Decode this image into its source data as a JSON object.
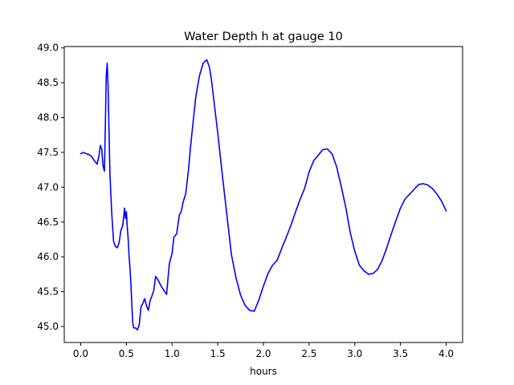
{
  "chart_data": {
    "type": "line",
    "title": "Water Depth h at gauge 10",
    "xlabel": "hours",
    "ylabel": "",
    "xlim": [
      -0.18,
      4.18
    ],
    "ylim": [
      44.77,
      49.02
    ],
    "xticks": [
      0.0,
      0.5,
      1.0,
      1.5,
      2.0,
      2.5,
      3.0,
      3.5,
      4.0
    ],
    "xtick_labels": [
      "0.0",
      "0.5",
      "1.0",
      "1.5",
      "2.0",
      "2.5",
      "3.0",
      "3.5",
      "4.0"
    ],
    "yticks": [
      45.0,
      45.5,
      46.0,
      46.5,
      47.0,
      47.5,
      48.0,
      48.5,
      49.0
    ],
    "ytick_labels": [
      "45.0",
      "45.5",
      "46.0",
      "46.5",
      "47.0",
      "47.5",
      "48.0",
      "48.5",
      "49.0"
    ],
    "grid": false,
    "legend": "none",
    "series": [
      {
        "color": "#0000ff",
        "x": [
          0.0,
          0.03,
          0.06,
          0.09,
          0.12,
          0.15,
          0.18,
          0.2,
          0.215,
          0.23,
          0.245,
          0.26,
          0.27,
          0.28,
          0.29,
          0.3,
          0.31,
          0.32,
          0.33,
          0.34,
          0.36,
          0.38,
          0.4,
          0.42,
          0.44,
          0.46,
          0.48,
          0.49,
          0.5,
          0.51,
          0.52,
          0.53,
          0.54,
          0.55,
          0.56,
          0.57,
          0.58,
          0.6,
          0.62,
          0.64,
          0.66,
          0.68,
          0.7,
          0.72,
          0.74,
          0.76,
          0.78,
          0.8,
          0.82,
          0.85,
          0.88,
          0.91,
          0.94,
          0.97,
          1.0,
          1.02,
          1.05,
          1.08,
          1.1,
          1.12,
          1.15,
          1.18,
          1.2,
          1.23,
          1.26,
          1.3,
          1.34,
          1.38,
          1.41,
          1.43,
          1.46,
          1.5,
          1.55,
          1.6,
          1.65,
          1.7,
          1.75,
          1.8,
          1.85,
          1.9,
          1.95,
          2.0,
          2.05,
          2.1,
          2.15,
          2.2,
          2.25,
          2.3,
          2.35,
          2.4,
          2.45,
          2.5,
          2.55,
          2.6,
          2.65,
          2.7,
          2.75,
          2.8,
          2.85,
          2.9,
          2.95,
          3.0,
          3.05,
          3.1,
          3.15,
          3.2,
          3.25,
          3.3,
          3.35,
          3.4,
          3.45,
          3.5,
          3.55,
          3.6,
          3.65,
          3.7,
          3.75,
          3.8,
          3.85,
          3.9,
          3.95,
          4.0
        ],
        "y": [
          47.48,
          47.5,
          47.48,
          47.47,
          47.44,
          47.38,
          47.33,
          47.45,
          47.6,
          47.55,
          47.3,
          47.23,
          47.9,
          48.6,
          48.78,
          48.45,
          47.8,
          47.2,
          46.9,
          46.62,
          46.22,
          46.15,
          46.13,
          46.2,
          46.38,
          46.45,
          46.7,
          46.55,
          46.65,
          46.42,
          46.25,
          46.0,
          45.83,
          45.6,
          45.3,
          45.05,
          44.98,
          44.98,
          44.95,
          45.02,
          45.28,
          45.33,
          45.4,
          45.3,
          45.23,
          45.37,
          45.44,
          45.52,
          45.72,
          45.66,
          45.58,
          45.52,
          45.46,
          45.9,
          46.05,
          46.28,
          46.33,
          46.6,
          46.65,
          46.78,
          46.91,
          47.25,
          47.55,
          47.93,
          48.3,
          48.6,
          48.78,
          48.83,
          48.72,
          48.55,
          48.22,
          47.78,
          47.18,
          46.6,
          46.03,
          45.7,
          45.45,
          45.3,
          45.23,
          45.22,
          45.38,
          45.58,
          45.76,
          45.88,
          45.95,
          46.12,
          46.28,
          46.45,
          46.64,
          46.82,
          46.98,
          47.22,
          47.38,
          47.46,
          47.54,
          47.55,
          47.48,
          47.3,
          47.02,
          46.72,
          46.35,
          46.08,
          45.88,
          45.8,
          45.75,
          45.76,
          45.82,
          45.95,
          46.13,
          46.33,
          46.52,
          46.7,
          46.83,
          46.9,
          46.97,
          47.04,
          47.05,
          47.03,
          46.98,
          46.9,
          46.8,
          46.66
        ]
      }
    ]
  }
}
